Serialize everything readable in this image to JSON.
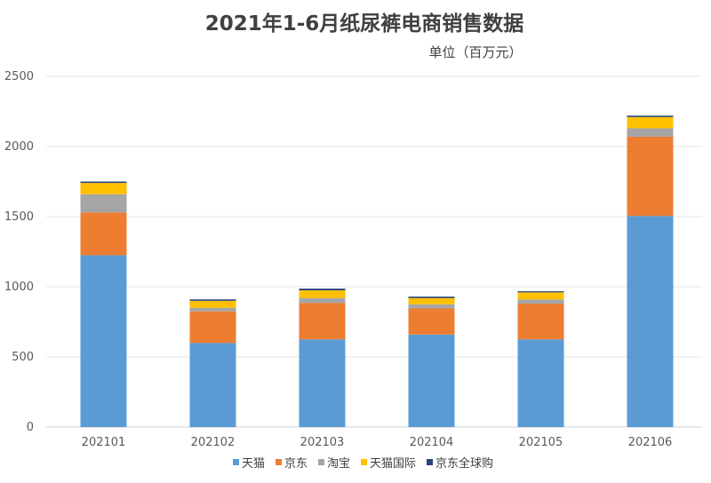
{
  "chart_data": {
    "type": "bar",
    "stacked": true,
    "title": "2021年1-6月纸尿裤电商销售数据",
    "unit_label": "单位（百万元）",
    "categories": [
      "202101",
      "202102",
      "202103",
      "202104",
      "202105",
      "202106"
    ],
    "series": [
      {
        "name": "天猫",
        "color": "#5B9BD5",
        "values": [
          1225,
          600,
          625,
          660,
          625,
          1505
        ]
      },
      {
        "name": "京东",
        "color": "#ED7D31",
        "values": [
          305,
          225,
          260,
          185,
          255,
          565
        ]
      },
      {
        "name": "淘宝",
        "color": "#A5A5A5",
        "values": [
          130,
          25,
          35,
          30,
          30,
          60
        ]
      },
      {
        "name": "天猫国际",
        "color": "#FFC000",
        "values": [
          80,
          50,
          55,
          45,
          50,
          80
        ]
      },
      {
        "name": "京东全球购",
        "color": "#264478",
        "values": [
          10,
          10,
          12,
          10,
          8,
          10
        ]
      }
    ],
    "ylim": [
      0,
      2500
    ],
    "yticks": [
      0,
      500,
      1000,
      1500,
      2000,
      2500
    ],
    "grid": true,
    "legend_position": "bottom"
  }
}
